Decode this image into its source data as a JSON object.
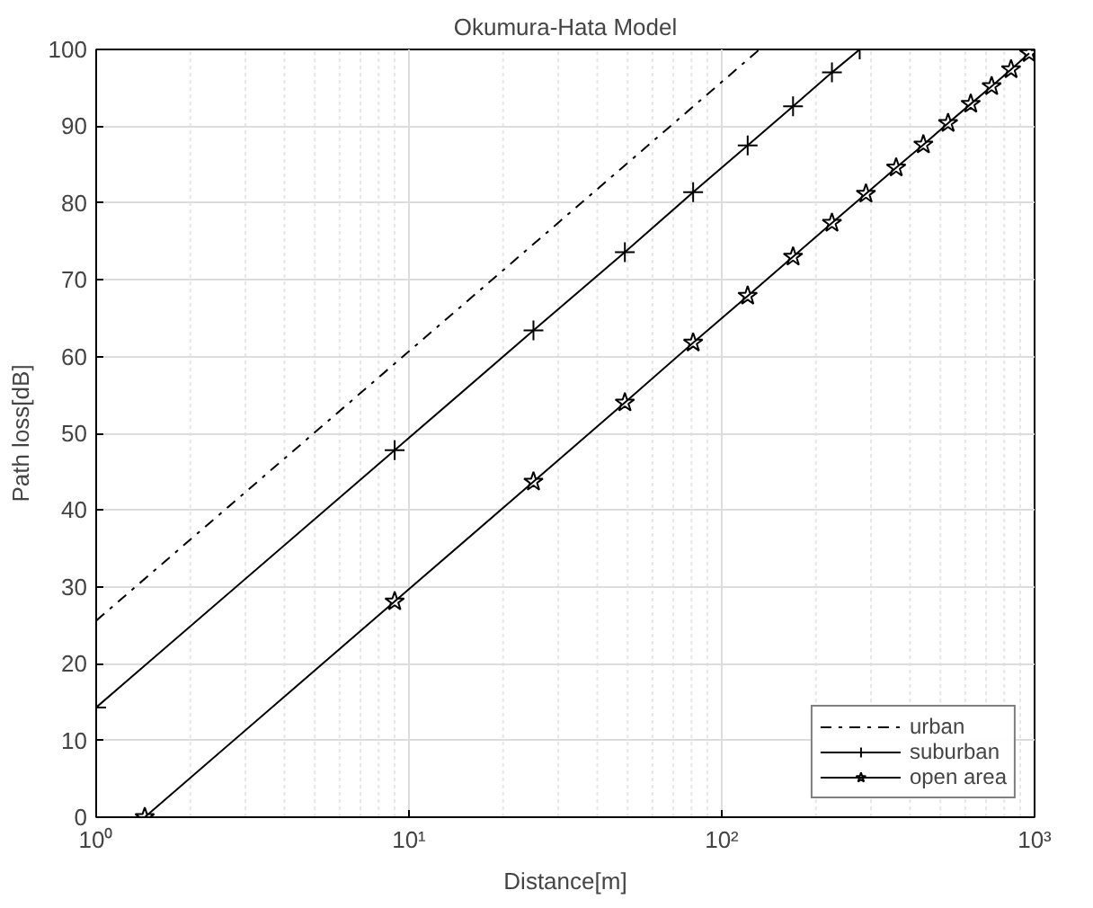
{
  "chart_data": {
    "type": "line",
    "title": "Okumura-Hata Model",
    "xlabel": "Distance[m]",
    "ylabel": "Path loss[dB]",
    "log": "x",
    "grid": true,
    "legend": "bottom right",
    "xlim": [
      1,
      1000
    ],
    "ylim": [
      0,
      100
    ],
    "xticks": [
      {
        "value": 1,
        "label": "10⁰"
      },
      {
        "value": 10,
        "label": "10¹"
      },
      {
        "value": 100,
        "label": "10²"
      },
      {
        "value": 1000,
        "label": "10³"
      }
    ],
    "yticks": [
      0,
      10,
      20,
      30,
      40,
      50,
      60,
      70,
      80,
      90,
      100
    ],
    "series": [
      {
        "name": "urban",
        "color": "#000000",
        "line_style": "dashdot",
        "marker": "none",
        "x": [
          1,
          132
        ],
        "values": [
          25.6,
          100
        ]
      },
      {
        "name": "suburban",
        "color": "#000000",
        "line_style": "solid",
        "marker": "cross",
        "x": [
          1,
          9,
          25,
          49,
          81,
          121,
          169,
          225,
          276
        ],
        "values": [
          14.3,
          47.8,
          63.4,
          73.6,
          81.4,
          87.5,
          92.6,
          97.0,
          100
        ]
      },
      {
        "name": "open area",
        "color": "#000000",
        "line_style": "solid",
        "marker": "star",
        "x": [
          1.43,
          9,
          25,
          49,
          81,
          121,
          169,
          225,
          289,
          361,
          441,
          529,
          625,
          729,
          841,
          961
        ],
        "values": [
          0,
          28.1,
          43.7,
          54.0,
          61.8,
          67.9,
          73.0,
          77.4,
          81.2,
          84.6,
          87.6,
          90.4,
          92.9,
          95.2,
          97.4,
          99.5
        ]
      }
    ]
  }
}
